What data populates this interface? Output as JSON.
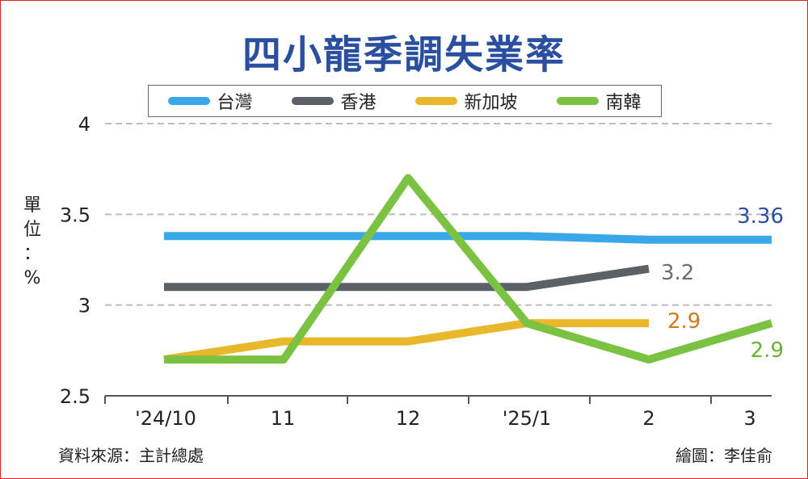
{
  "chart_data": {
    "type": "line",
    "title": "四小龍季調失業率",
    "unit_label": [
      "單",
      "位",
      "：",
      "%"
    ],
    "categories": [
      "'24/10",
      "11",
      "12",
      "'25/1",
      "2",
      "3"
    ],
    "ylim": [
      2.5,
      4
    ],
    "yticks": [
      "2.5",
      "3",
      "3.5",
      "4"
    ],
    "grid": "dashed-horizontal",
    "legend_position": "top",
    "series": [
      {
        "name": "台灣",
        "color": "#3aa8e8",
        "values": [
          3.38,
          3.38,
          3.38,
          3.38,
          3.36,
          3.36
        ],
        "end_label": "3.36",
        "label_color": "#2a4fa0"
      },
      {
        "name": "香港",
        "color": "#5b6166",
        "values": [
          3.1,
          3.1,
          3.1,
          3.1,
          3.2,
          null
        ],
        "end_label": "3.2",
        "label_color": "#6a6e72"
      },
      {
        "name": "新加坡",
        "color": "#e8b72a",
        "values": [
          2.7,
          2.8,
          2.8,
          2.9,
          2.9,
          null
        ],
        "end_label": "2.9",
        "label_color": "#d27a1a"
      },
      {
        "name": "南韓",
        "color": "#7cc242",
        "values": [
          2.7,
          2.7,
          3.7,
          2.9,
          2.7,
          2.9
        ],
        "end_label": "2.9",
        "label_color": "#6ab232"
      }
    ]
  },
  "footer": {
    "source": "資料來源：主計總處",
    "credit": "繪圖：李佳俞"
  }
}
